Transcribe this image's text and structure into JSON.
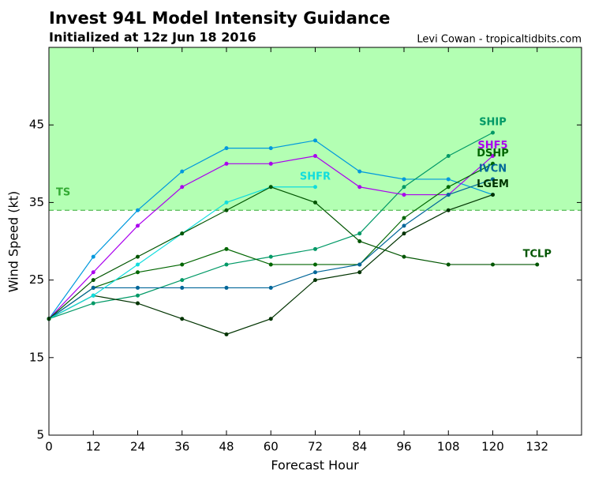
{
  "chart_data": {
    "type": "line",
    "title": "Invest 94L Model Intensity Guidance",
    "subtitle": "Initialized at 12z Jun 18 2016",
    "credit": "Levi Cowan - tropicaltidbits.com",
    "x_label": "Forecast Hour",
    "y_label": "Wind Speed (kt)",
    "x": [
      0,
      12,
      24,
      36,
      48,
      60,
      72,
      84,
      96,
      108,
      120,
      132
    ],
    "xlim": [
      0,
      144
    ],
    "xticks": [
      0,
      12,
      24,
      36,
      48,
      60,
      72,
      84,
      96,
      108,
      120,
      132
    ],
    "ylim": [
      5,
      55
    ],
    "yticks": [
      5,
      15,
      25,
      35,
      45
    ],
    "threshold": {
      "label": "TS",
      "value": 34,
      "color": "#b3ffb3",
      "line_color": "#33aa33"
    },
    "series": [
      {
        "color": "#0099dd",
        "values": [
          20,
          28,
          34,
          39,
          42,
          42,
          43,
          39,
          38,
          38,
          36,
          null
        ]
      },
      {
        "name": "SHIP",
        "color": "#009966",
        "values": [
          20,
          22,
          23,
          25,
          27,
          28,
          29,
          31,
          37,
          41,
          44,
          null
        ]
      },
      {
        "name": "SHF5",
        "color": "#aa00ee",
        "values": [
          20,
          26,
          32,
          37,
          40,
          40,
          41,
          37,
          36,
          36,
          41,
          null
        ]
      },
      {
        "name": "DSHP",
        "color": "#006600",
        "values": [
          20,
          24,
          26,
          27,
          29,
          27,
          27,
          27,
          33,
          37,
          40,
          null
        ]
      },
      {
        "name": "IVCN",
        "color": "#006699",
        "values": [
          20,
          24,
          24,
          24,
          24,
          24,
          26,
          27,
          32,
          36,
          38,
          null
        ]
      },
      {
        "name": "LGEM",
        "color": "#003300",
        "values": [
          20,
          23,
          22,
          20,
          18,
          20,
          25,
          26,
          31,
          34,
          36,
          null
        ]
      },
      {
        "name": "SHFR",
        "color": "#11dddd",
        "values": [
          20,
          23,
          27,
          31,
          35,
          37,
          37,
          null,
          null,
          null,
          null,
          null
        ]
      },
      {
        "name": "TCLP",
        "color": "#005500",
        "values": [
          20,
          25,
          28,
          31,
          34,
          37,
          35,
          30,
          28,
          27,
          27,
          27
        ]
      }
    ]
  }
}
